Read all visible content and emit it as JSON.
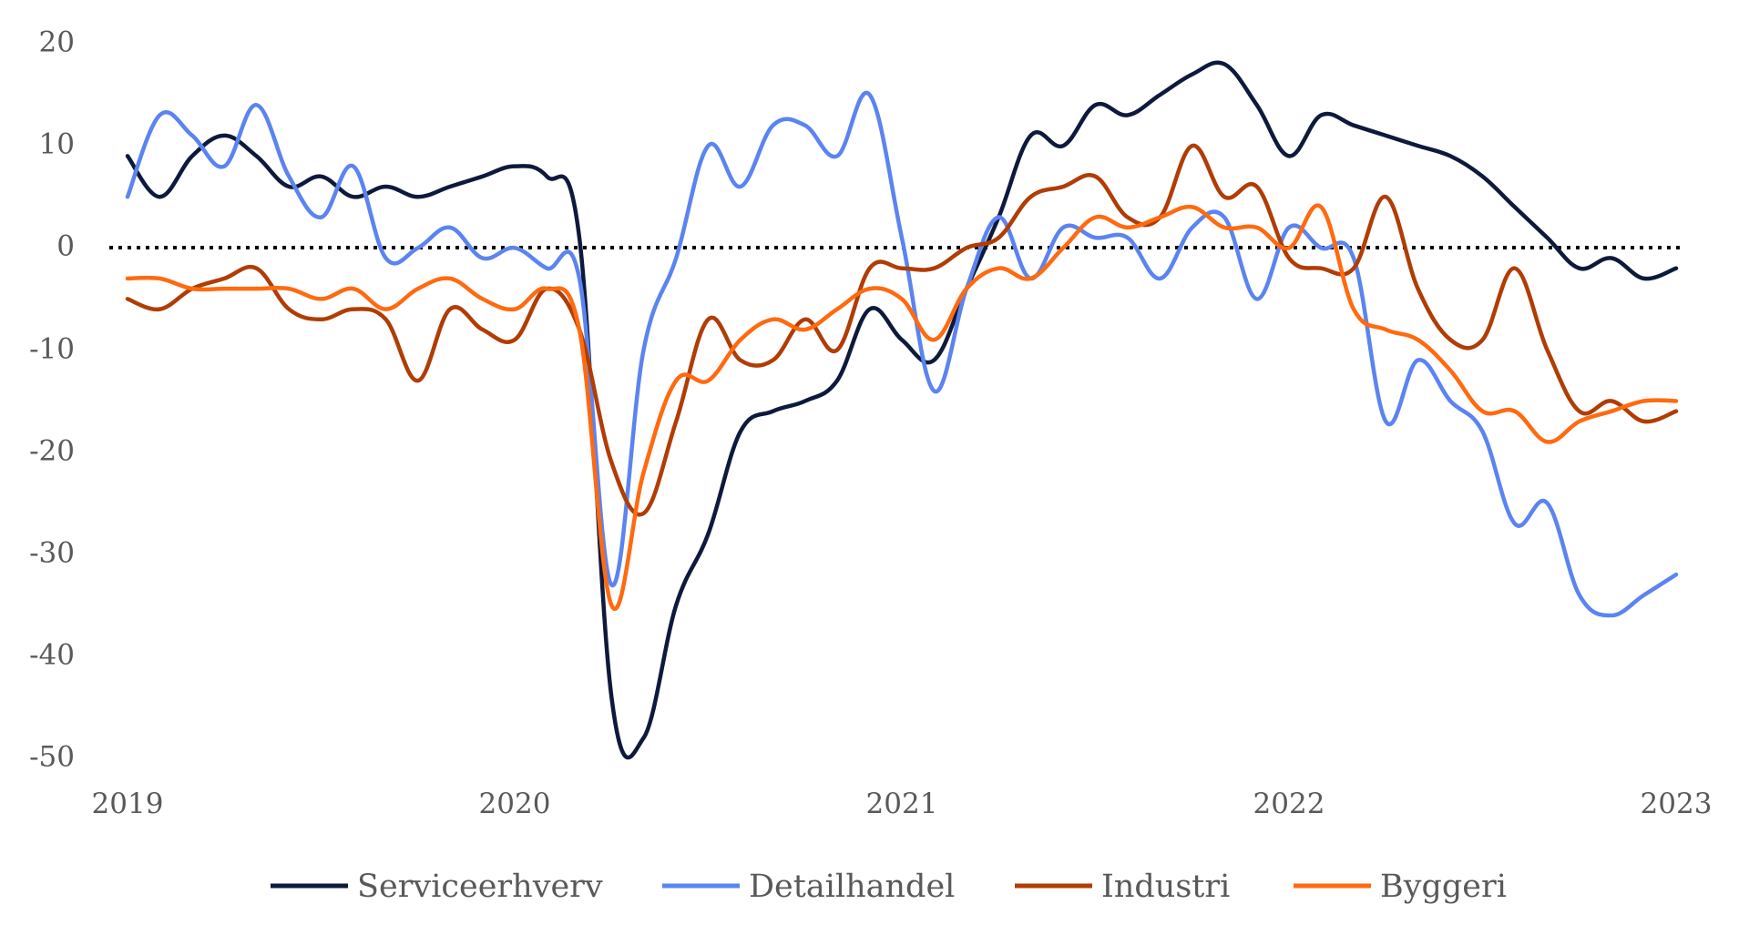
{
  "chart_data": {
    "type": "line",
    "title": "",
    "xlabel": "",
    "ylabel": "",
    "xlim": [
      2019,
      2023
    ],
    "ylim": [
      -50,
      20
    ],
    "grid": false,
    "legend_position": "bottom",
    "x_ticks": [
      "2019",
      "2020",
      "2021",
      "2022",
      "2023"
    ],
    "y_ticks": [
      "20",
      "10",
      "0",
      "-10",
      "-20",
      "-30",
      "-40",
      "-50"
    ],
    "reference_line": {
      "y": 0,
      "style": "dotted",
      "color": "#000000"
    },
    "series": [
      {
        "name": "Serviceerhverv",
        "color": "#0d1a3c",
        "x": [
          2019.0,
          2019.083,
          2019.167,
          2019.25,
          2019.333,
          2019.417,
          2019.5,
          2019.583,
          2019.667,
          2019.75,
          2019.833,
          2019.917,
          2020.0,
          2020.083,
          2020.167,
          2020.25,
          2020.333,
          2020.417,
          2020.5,
          2020.583,
          2020.667,
          2020.75,
          2020.833,
          2020.917,
          2021.0,
          2021.083,
          2021.167,
          2021.25,
          2021.333,
          2021.417,
          2021.5,
          2021.583,
          2021.667,
          2021.75,
          2021.833,
          2021.917,
          2022.0,
          2022.083,
          2022.167,
          2022.25,
          2022.333,
          2022.417,
          2022.5,
          2022.583,
          2022.667,
          2022.75,
          2022.833,
          2022.917,
          2023.0
        ],
        "y": [
          9,
          5,
          9,
          11,
          9,
          6,
          7,
          5,
          6,
          5,
          6,
          7,
          8,
          7,
          1,
          -44,
          -48,
          -35,
          -28,
          -18,
          -16,
          -15,
          -13,
          -6,
          -9,
          -11,
          -4,
          3,
          11,
          10,
          14,
          13,
          15,
          17,
          18,
          14,
          9,
          13,
          12,
          11,
          10,
          9,
          7,
          4,
          1,
          -2,
          -1,
          -3,
          -2
        ]
      },
      {
        "name": "Detailhandel",
        "color": "#5b84f0",
        "x": [
          2019.0,
          2019.083,
          2019.167,
          2019.25,
          2019.333,
          2019.417,
          2019.5,
          2019.583,
          2019.667,
          2019.75,
          2019.833,
          2019.917,
          2020.0,
          2020.083,
          2020.167,
          2020.25,
          2020.333,
          2020.417,
          2020.5,
          2020.583,
          2020.667,
          2020.75,
          2020.833,
          2020.917,
          2021.0,
          2021.083,
          2021.167,
          2021.25,
          2021.333,
          2021.417,
          2021.5,
          2021.583,
          2021.667,
          2021.75,
          2021.833,
          2021.917,
          2022.0,
          2022.083,
          2022.167,
          2022.25,
          2022.333,
          2022.417,
          2022.5,
          2022.583,
          2022.667,
          2022.75,
          2022.833,
          2022.917,
          2023.0
        ],
        "y": [
          5,
          13,
          11,
          8,
          14,
          7,
          3,
          8,
          -1,
          0,
          2,
          -1,
          0,
          -2,
          -3,
          -33,
          -10,
          -1,
          10,
          6,
          12,
          12,
          9,
          15,
          1,
          -14,
          -4,
          3,
          -3,
          2,
          1,
          1,
          -3,
          2,
          3,
          -5,
          2,
          0,
          -1,
          -17,
          -11,
          -15,
          -18,
          -27,
          -25,
          -34,
          -36,
          -34,
          -32
        ]
      },
      {
        "name": "Industri",
        "color": "#b03d05",
        "x": [
          2019.0,
          2019.083,
          2019.167,
          2019.25,
          2019.333,
          2019.417,
          2019.5,
          2019.583,
          2019.667,
          2019.75,
          2019.833,
          2019.917,
          2020.0,
          2020.083,
          2020.167,
          2020.25,
          2020.333,
          2020.417,
          2020.5,
          2020.583,
          2020.667,
          2020.75,
          2020.833,
          2020.917,
          2021.0,
          2021.083,
          2021.167,
          2021.25,
          2021.333,
          2021.417,
          2021.5,
          2021.583,
          2021.667,
          2021.75,
          2021.833,
          2021.917,
          2022.0,
          2022.083,
          2022.167,
          2022.25,
          2022.333,
          2022.417,
          2022.5,
          2022.583,
          2022.667,
          2022.75,
          2022.833,
          2022.917,
          2023.0
        ],
        "y": [
          -5,
          -6,
          -4,
          -3,
          -2,
          -6,
          -7,
          -6,
          -7,
          -13,
          -6,
          -8,
          -9,
          -4,
          -8,
          -21,
          -26,
          -17,
          -7,
          -11,
          -11,
          -7,
          -10,
          -2,
          -2,
          -2,
          0,
          1,
          5,
          6,
          7,
          3,
          3,
          10,
          5,
          6,
          -1,
          -2,
          -2,
          5,
          -4,
          -9,
          -9,
          -2,
          -10,
          -16,
          -15,
          -17,
          -16
        ]
      },
      {
        "name": "Byggeri",
        "color": "#ff6a10",
        "x": [
          2019.0,
          2019.083,
          2019.167,
          2019.25,
          2019.333,
          2019.417,
          2019.5,
          2019.583,
          2019.667,
          2019.75,
          2019.833,
          2019.917,
          2020.0,
          2020.083,
          2020.167,
          2020.25,
          2020.333,
          2020.417,
          2020.5,
          2020.583,
          2020.667,
          2020.75,
          2020.833,
          2020.917,
          2021.0,
          2021.083,
          2021.167,
          2021.25,
          2021.333,
          2021.417,
          2021.5,
          2021.583,
          2021.667,
          2021.75,
          2021.833,
          2021.917,
          2022.0,
          2022.083,
          2022.167,
          2022.25,
          2022.333,
          2022.417,
          2022.5,
          2022.583,
          2022.667,
          2022.75,
          2022.833,
          2022.917,
          2023.0
        ],
        "y": [
          -3,
          -3,
          -4,
          -4,
          -4,
          -4,
          -5,
          -4,
          -6,
          -4,
          -3,
          -5,
          -6,
          -4,
          -8,
          -35,
          -22,
          -13,
          -13,
          -9,
          -7,
          -8,
          -6,
          -4,
          -5,
          -9,
          -4,
          -2,
          -3,
          0,
          3,
          2,
          3,
          4,
          2,
          2,
          0,
          4,
          -6,
          -8,
          -9,
          -12,
          -16,
          -16,
          -19,
          -17,
          -16,
          -15,
          -15
        ]
      }
    ]
  }
}
